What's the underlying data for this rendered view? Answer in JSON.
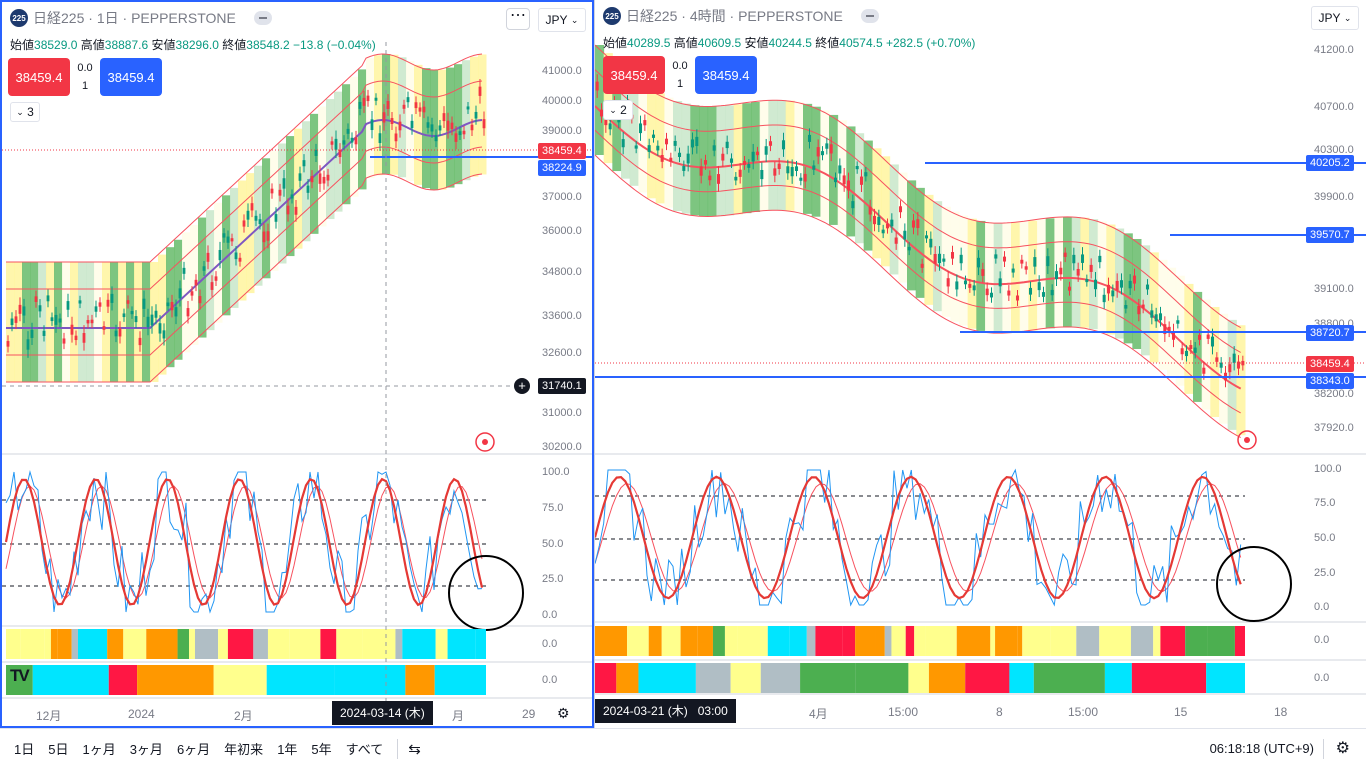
{
  "left": {
    "symbol_badge": "225",
    "title": "日経225",
    "interval": "1日",
    "broker": "PEPPERSTONE",
    "ohlc": {
      "o_label": "始値",
      "o": "38529.0",
      "h_label": "高値",
      "h": "38887.6",
      "l_label": "安値",
      "l": "38296.0",
      "c_label": "終値",
      "c": "38548.2",
      "change": "−13.8 (−0.04%)"
    },
    "sell_price": "38459.4",
    "spread": "0.0",
    "qty": "1",
    "buy_price": "38459.4",
    "collapse_label": "3",
    "currency": "JPY",
    "more_label": "⋯",
    "price_axis": [
      "41000.0",
      "40000.0",
      "39000.0",
      "37000.0",
      "36000.0",
      "34800.0",
      "33600.0",
      "32600.0",
      "31000.0",
      "30200.0"
    ],
    "tags": {
      "current": "38459.4",
      "line1": "38224.9",
      "crosshair": "31740.1"
    },
    "osc_axis": [
      "100.0",
      "75.0",
      "50.0",
      "25.0",
      "0.0"
    ],
    "ind1_value": "0.0",
    "ind2_value": "0.0",
    "x_labels": [
      "12月",
      "2024",
      "2月",
      "29"
    ],
    "crosshair_date": "2024-03-14 (木)",
    "axis_hidden_label": "月"
  },
  "right": {
    "symbol_badge": "225",
    "title": "日経225",
    "interval": "4時間",
    "broker": "PEPPERSTONE",
    "ohlc": {
      "o_label": "始値",
      "o": "40289.5",
      "h_label": "高値",
      "h": "40609.5",
      "l_label": "安値",
      "l": "40244.5",
      "c_label": "終値",
      "c": "40574.5",
      "change": "+282.5 (+0.70%)"
    },
    "sell_price": "38459.4",
    "spread": "0.0",
    "qty": "1",
    "buy_price": "38459.4",
    "collapse_label": "2",
    "currency": "JPY",
    "price_axis": [
      "41200.0",
      "40700.0",
      "40300.0",
      "39900.0",
      "39100.0",
      "38800.0",
      "38200.0",
      "37920.0"
    ],
    "tags": {
      "l1": "40205.2",
      "l2": "39570.7",
      "l3": "38720.7",
      "current": "38459.4",
      "l4": "38343.0"
    },
    "osc_axis": [
      "100.0",
      "75.0",
      "50.0",
      "25.0",
      "0.0"
    ],
    "ind1_value": "0.0",
    "ind2_value": "0.0",
    "x_labels": [
      "4月",
      "15:00",
      "8",
      "15:00",
      "15",
      "18"
    ],
    "crosshair_date": "2024-03-21 (木)",
    "crosshair_time": "03:00"
  },
  "bottom": {
    "timeframes": [
      "1日",
      "5日",
      "1ヶ月",
      "3ヶ月",
      "6ヶ月",
      "年初来",
      "1年",
      "5年",
      "すべて"
    ],
    "calendar_icon": "⇆",
    "clock": "06:18:18 (UTC+9)",
    "settings_icon": "⚙"
  },
  "colors": {
    "up": "#089981",
    "down": "#f23645",
    "blue": "#2962ff",
    "band": "#f7525f",
    "purple": "#7e57c2",
    "yellow": "#ffeb3b",
    "green": "#4caf50",
    "cyan": "#00e5ff"
  }
}
